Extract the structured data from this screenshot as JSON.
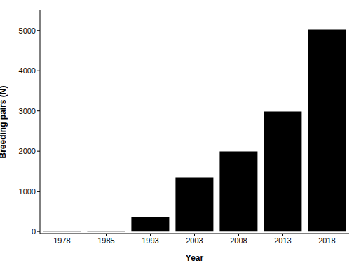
{
  "chart_data": {
    "type": "bar",
    "x_label": "Year",
    "y_label": "Breeding pairs (N)",
    "categories": [
      "1978",
      "1985",
      "1993",
      "2003",
      "2008",
      "2013",
      "2018"
    ],
    "values": [
      12,
      12,
      355,
      1350,
      1995,
      2985,
      5020
    ],
    "color": "#000000",
    "ylim": [
      -50,
      5500
    ],
    "yticks": [
      0,
      1000,
      2000,
      3000,
      4000,
      5000
    ],
    "grid": false
  }
}
